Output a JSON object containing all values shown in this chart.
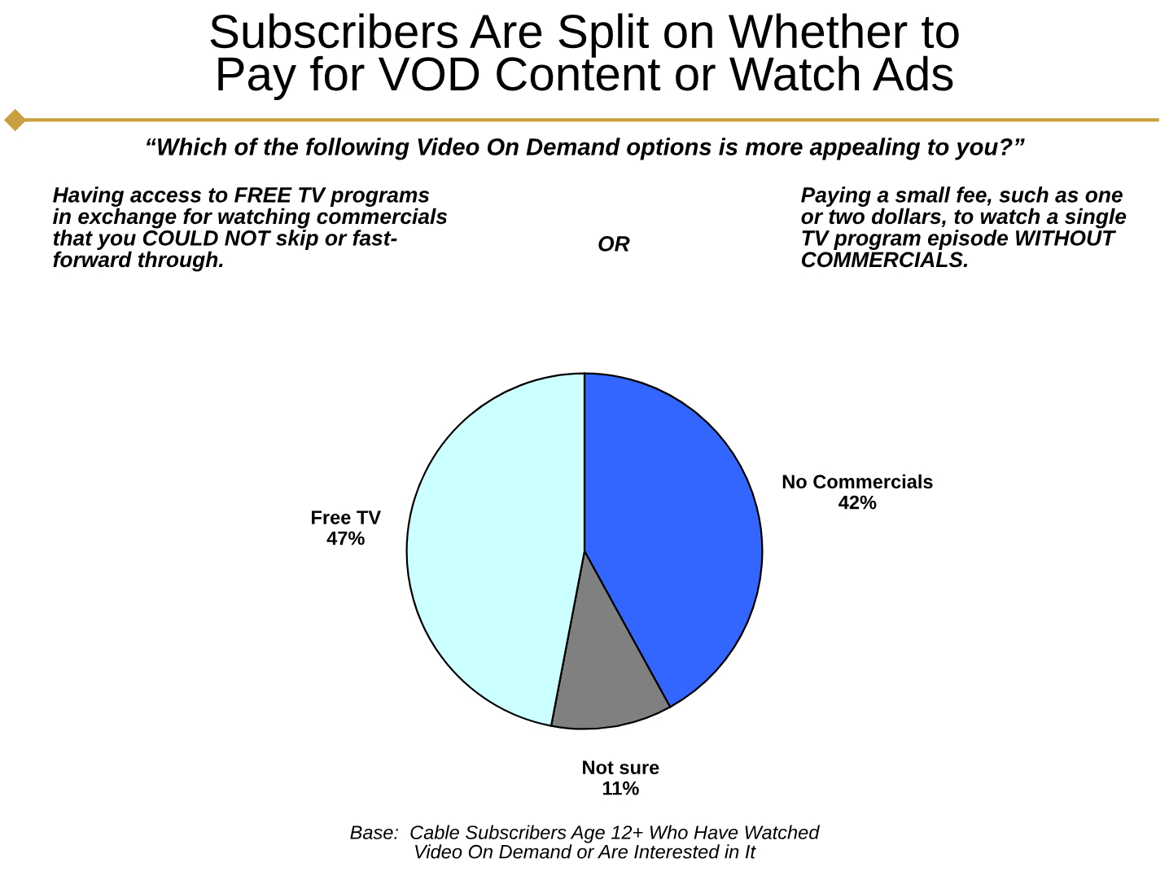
{
  "chart_data": {
    "type": "pie",
    "title": "Subscribers Are Split on Whether to\nPay for VOD Content or Watch Ads",
    "subtitle": "“Which of the following Video On Demand options is more appealing to you?”",
    "categories": [
      "No Commercials",
      "Not sure",
      "Free TV"
    ],
    "values": [
      42,
      11,
      47
    ],
    "value_labels": [
      "42%",
      "11%",
      "47%"
    ],
    "colors": [
      "#3366ff",
      "#808080",
      "#ccffff"
    ],
    "annotations": [
      "Having access to FREE TV programs\nin exchange for watching commercials\nthat you COULD NOT skip or fast-\nforward through.",
      "OR",
      "Paying a small fee, such as one\nor two dollars, to watch a single\nTV program episode WITHOUT\nCOMMERCIALS.",
      "Base:  Cable Subscribers Age 12+ Who Have Watched\nVideo On Demand or Are Interested in It"
    ]
  }
}
